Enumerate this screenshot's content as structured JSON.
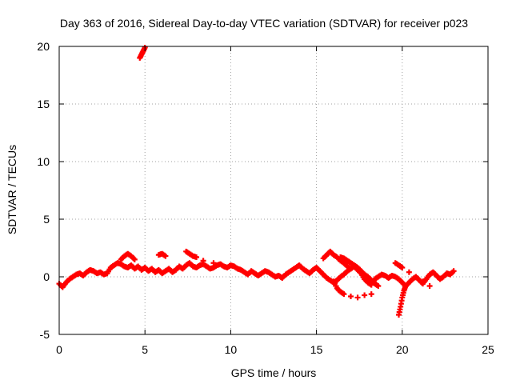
{
  "chart_data": {
    "type": "scatter",
    "title": "Day 363 of 2016, Sidereal Day-to-day VTEC variation (SDTVAR) for receiver p023",
    "xlabel": "GPS time / hours",
    "ylabel": "SDTVAR / TECUs",
    "xlim": [
      0,
      25
    ],
    "ylim": [
      -5,
      20
    ],
    "xticks": [
      0,
      5,
      10,
      15,
      20,
      25
    ],
    "yticks": [
      -5,
      0,
      5,
      10,
      15,
      20
    ],
    "grid": true,
    "series": [
      {
        "name": "SDTVAR",
        "color": "#ff0000",
        "marker": "plus",
        "x": [
          0.0,
          0.2,
          0.4,
          0.6,
          0.8,
          1.0,
          1.2,
          1.4,
          1.6,
          1.8,
          2.0,
          2.2,
          2.4,
          2.6,
          2.8,
          3.0,
          3.2,
          3.4,
          3.6,
          3.8,
          4.0,
          4.2,
          4.4,
          4.6,
          4.8,
          5.0,
          5.2,
          5.4,
          5.6,
          5.8,
          6.0,
          6.2,
          6.4,
          6.6,
          6.8,
          7.0,
          7.2,
          7.4,
          7.6,
          7.8,
          8.0,
          8.2,
          8.4,
          8.6,
          8.8,
          9.0,
          9.2,
          9.4,
          9.6,
          9.8,
          10.0,
          10.2,
          10.4,
          10.6,
          10.8,
          11.0,
          11.2,
          11.4,
          11.6,
          11.8,
          12.0,
          12.2,
          12.4,
          12.6,
          12.8,
          13.0,
          13.2,
          13.4,
          13.6,
          13.8,
          14.0,
          14.2,
          14.4,
          14.6,
          14.8,
          15.0,
          15.2,
          15.4,
          15.6,
          15.8,
          16.0,
          16.2,
          16.4,
          16.6,
          16.8,
          17.0,
          17.2,
          17.4,
          17.6,
          17.8,
          18.0,
          18.2,
          18.4,
          18.6,
          18.8,
          19.0,
          19.2,
          19.4,
          19.6,
          19.8,
          20.0,
          20.2,
          20.4,
          20.6,
          20.8,
          21.0,
          21.2,
          21.4,
          21.6,
          21.8,
          22.0,
          22.2,
          22.4,
          22.6,
          22.8,
          23.0,
          3.6,
          3.8,
          4.0,
          4.2,
          4.4,
          5.8,
          6.0,
          6.2,
          7.4,
          7.6,
          7.8,
          8.0,
          8.4,
          9.0,
          15.4,
          15.6,
          15.8,
          16.0,
          16.2,
          16.4,
          16.6,
          16.8,
          17.0,
          16.4,
          16.6,
          16.8,
          17.0,
          17.2,
          17.4,
          17.6,
          17.8,
          18.0,
          18.2,
          18.4,
          18.6,
          16.0,
          16.2,
          16.4,
          16.6,
          17.0,
          17.4,
          17.8,
          18.2,
          19.8,
          19.9,
          20.0,
          20.1,
          20.2,
          19.6,
          19.8,
          20.0,
          20.4,
          20.8,
          21.2,
          21.6,
          4.7,
          4.8,
          4.9,
          5.0
        ],
        "y": [
          -0.6,
          -0.9,
          -0.5,
          -0.2,
          0.0,
          0.2,
          0.3,
          0.1,
          0.4,
          0.6,
          0.5,
          0.3,
          0.4,
          0.2,
          0.3,
          0.8,
          1.0,
          1.2,
          1.1,
          0.9,
          0.8,
          1.0,
          0.7,
          0.9,
          0.6,
          0.8,
          0.5,
          0.7,
          0.4,
          0.6,
          0.3,
          0.5,
          0.7,
          0.4,
          0.6,
          0.9,
          0.7,
          1.0,
          1.2,
          0.9,
          0.8,
          1.0,
          1.1,
          0.9,
          0.7,
          0.8,
          1.0,
          1.1,
          0.9,
          0.8,
          1.0,
          0.9,
          0.7,
          0.6,
          0.4,
          0.2,
          0.5,
          0.3,
          0.1,
          0.3,
          0.5,
          0.4,
          0.2,
          0.0,
          0.1,
          -0.1,
          0.2,
          0.4,
          0.6,
          0.8,
          1.0,
          0.7,
          0.5,
          0.3,
          0.6,
          0.8,
          0.5,
          0.2,
          -0.1,
          -0.3,
          -0.5,
          -0.3,
          0.0,
          0.2,
          0.5,
          0.7,
          0.9,
          0.6,
          0.3,
          -0.2,
          -0.5,
          -0.7,
          -0.2,
          0.0,
          0.2,
          0.1,
          -0.1,
          0.1,
          0.0,
          -0.2,
          -0.5,
          -0.8,
          -0.5,
          -0.2,
          0.0,
          -0.3,
          -0.6,
          -0.2,
          0.2,
          0.4,
          0.1,
          -0.2,
          0.0,
          0.3,
          0.2,
          0.5,
          1.5,
          1.8,
          2.0,
          1.8,
          1.5,
          1.9,
          2.0,
          1.8,
          2.2,
          2.0,
          1.8,
          1.7,
          1.4,
          1.2,
          1.6,
          1.9,
          2.2,
          1.9,
          1.7,
          1.4,
          1.2,
          0.9,
          0.7,
          1.7,
          1.6,
          1.4,
          1.2,
          1.0,
          0.8,
          0.5,
          0.2,
          0.0,
          -0.3,
          -0.6,
          -0.8,
          -0.4,
          -1.0,
          -1.3,
          -1.5,
          -1.7,
          -1.8,
          -1.6,
          -1.5,
          -3.3,
          -2.6,
          -1.8,
          -1.2,
          -0.8,
          1.2,
          1.0,
          0.8,
          0.4,
          0.0,
          -0.4,
          -0.8,
          19.0,
          19.3,
          19.6,
          19.9
        ]
      }
    ]
  }
}
